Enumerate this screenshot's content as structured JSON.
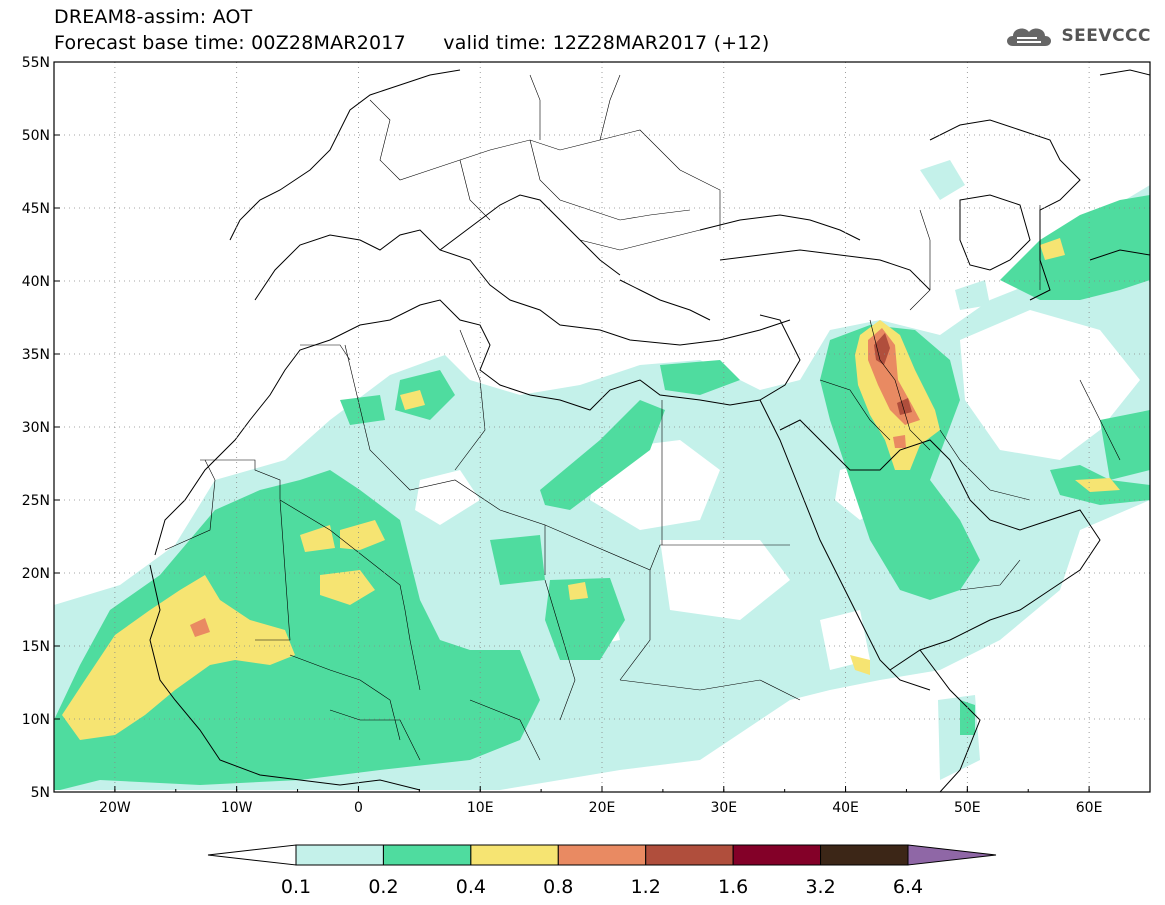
{
  "header": {
    "title": "DREAM8-assim: AOT",
    "base_time": "Forecast base time: 00Z28MAR2017",
    "valid_time": "valid time: 12Z28MAR2017 (+12)"
  },
  "logo": {
    "text": "SEEVCCC",
    "icon": "cloud-logo-icon"
  },
  "map": {
    "field": "AOT",
    "lon_range": [
      -25,
      65
    ],
    "lat_range": [
      5,
      55
    ],
    "lat_labels": [
      "55N",
      "50N",
      "45N",
      "40N",
      "35N",
      "30N",
      "25N",
      "20N",
      "15N",
      "10N",
      "5N"
    ],
    "lon_labels": [
      "20W",
      "10W",
      "0",
      "10E",
      "20E",
      "30E",
      "40E",
      "50E",
      "60E"
    ],
    "grid": "dotted"
  },
  "colorbar": {
    "labels": [
      "0.1",
      "0.2",
      "0.4",
      "0.8",
      "1.2",
      "1.6",
      "3.2",
      "6.4"
    ],
    "colors": [
      "#ffffff",
      "#c4f1ea",
      "#4fdc9f",
      "#f6e472",
      "#e98a62",
      "#b04e3c",
      "#830028",
      "#3c2617",
      "#8f67a6"
    ]
  }
}
